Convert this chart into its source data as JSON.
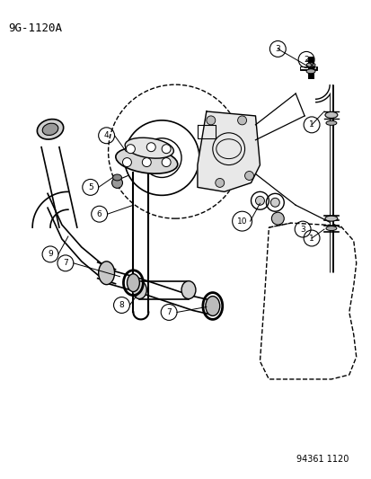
{
  "title": "9G-1120A",
  "subtitle": "94361 1120",
  "bg": "#ffffff",
  "lc": "#000000",
  "fw": 4.14,
  "fh": 5.33,
  "dpi": 100
}
